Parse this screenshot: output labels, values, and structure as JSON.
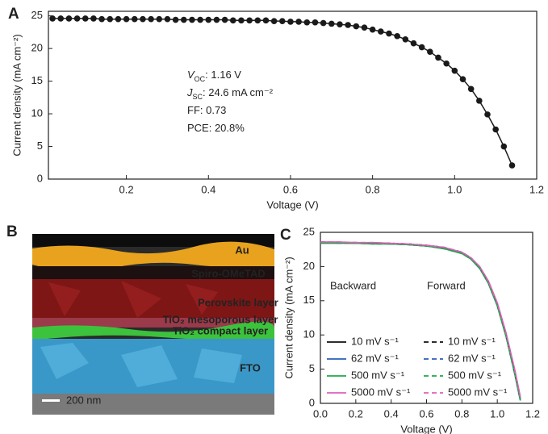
{
  "chart_data": [
    {
      "type": "line",
      "panel_label": "A",
      "xlabel": "Voltage (V)",
      "ylabel": "Current density (mA cm⁻²)",
      "xlim": [
        0.01,
        1.2
      ],
      "xticks": [
        0.2,
        0.4,
        0.6,
        0.8,
        {
          "value": 1,
          "label": "1.0"
        },
        1.2
      ],
      "ylim": [
        0,
        25.7
      ],
      "yticks": [
        0,
        5,
        10,
        15,
        20,
        25
      ],
      "markers": true,
      "x": [
        0.02,
        0.04,
        0.06,
        0.08,
        0.1,
        0.12,
        0.14,
        0.16,
        0.18,
        0.2,
        0.22,
        0.24,
        0.26,
        0.28,
        0.3,
        0.32,
        0.34,
        0.36,
        0.38,
        0.4,
        0.42,
        0.44,
        0.46,
        0.48,
        0.5,
        0.52,
        0.54,
        0.56,
        0.58,
        0.6,
        0.62,
        0.64,
        0.66,
        0.68,
        0.7,
        0.72,
        0.74,
        0.76,
        0.78,
        0.8,
        0.82,
        0.84,
        0.86,
        0.88,
        0.9,
        0.92,
        0.94,
        0.96,
        0.98,
        1.0,
        1.02,
        1.04,
        1.06,
        1.08,
        1.1,
        1.12,
        1.14
      ],
      "series": [
        {
          "color": "#1a1a1a",
          "values": [
            24.6,
            24.6,
            24.6,
            24.6,
            24.6,
            24.6,
            24.5,
            24.5,
            24.5,
            24.5,
            24.5,
            24.5,
            24.5,
            24.5,
            24.5,
            24.4,
            24.4,
            24.4,
            24.4,
            24.4,
            24.4,
            24.4,
            24.3,
            24.3,
            24.3,
            24.3,
            24.3,
            24.2,
            24.2,
            24.1,
            24.1,
            24.0,
            24.0,
            23.9,
            23.8,
            23.7,
            23.6,
            23.4,
            23.2,
            22.9,
            22.6,
            22.3,
            21.9,
            21.4,
            20.8,
            20.2,
            19.5,
            18.6,
            17.7,
            16.6,
            15.3,
            13.8,
            12.0,
            9.9,
            7.6,
            5.0,
            2.1
          ]
        }
      ],
      "annotations": [
        [
          {
            "text": "V",
            "style": "italic"
          },
          {
            "text": "OC",
            "style": "sub"
          },
          {
            "text": ": 1.16 V"
          }
        ],
        [
          {
            "text": "J",
            "style": "italic"
          },
          {
            "text": "SC",
            "style": "sub"
          },
          {
            "text": ": 24.6 mA cm⁻²"
          }
        ],
        [
          {
            "text": "FF: 0.73"
          }
        ],
        [
          {
            "text": "PCE: 20.8%"
          }
        ]
      ]
    },
    {
      "type": "line",
      "panel_label": "C",
      "xlabel": "Voltage (V)",
      "ylabel": "Current density (mA cm⁻²)",
      "xlim": [
        0,
        1.2
      ],
      "xticks": [
        {
          "value": 0,
          "label": "0.0"
        },
        0.2,
        0.4,
        0.6,
        0.8,
        {
          "value": 1,
          "label": "1.0"
        },
        1.2
      ],
      "ylim": [
        0,
        25
      ],
      "yticks": [
        0,
        5,
        10,
        15,
        20,
        25
      ],
      "markers": false,
      "legend_titles": [
        "Backward",
        "Forward"
      ],
      "x": [
        0,
        0.1,
        0.2,
        0.3,
        0.4,
        0.5,
        0.6,
        0.7,
        0.8,
        0.85,
        0.9,
        0.95,
        1.0,
        1.05,
        1.1,
        1.13
      ],
      "series": [
        {
          "name": "10 mV s⁻¹",
          "color": "#111111",
          "dash": false,
          "values": [
            23.5,
            23.5,
            23.4,
            23.4,
            23.3,
            23.2,
            23.0,
            22.7,
            22.0,
            21.2,
            19.8,
            17.6,
            14.3,
            9.8,
            4.2,
            0.5
          ]
        },
        {
          "name": "62 mV s⁻¹",
          "color": "#2b5fb8",
          "dash": false,
          "values": [
            23.5,
            23.5,
            23.4,
            23.4,
            23.3,
            23.2,
            23.0,
            22.7,
            22.0,
            21.2,
            19.9,
            17.7,
            14.5,
            10.0,
            4.5,
            0.7
          ]
        },
        {
          "name": "500 mV s⁻¹",
          "color": "#1fa84a",
          "dash": false,
          "values": [
            23.4,
            23.4,
            23.4,
            23.3,
            23.3,
            23.2,
            23.0,
            22.6,
            21.9,
            21.1,
            19.7,
            17.5,
            14.2,
            9.7,
            4.1,
            0.4
          ]
        },
        {
          "name": "5000 mV s⁻¹",
          "color": "#e060b8",
          "dash": false,
          "values": [
            23.6,
            23.6,
            23.5,
            23.5,
            23.4,
            23.3,
            23.1,
            22.8,
            22.1,
            21.3,
            20.0,
            17.9,
            14.7,
            10.3,
            4.8,
            1.0
          ]
        },
        {
          "name": "10 mV s⁻¹",
          "color": "#111111",
          "dash": true,
          "values": [
            23.6,
            23.5,
            23.5,
            23.4,
            23.4,
            23.3,
            23.1,
            22.8,
            22.1,
            21.3,
            19.9,
            17.7,
            14.4,
            9.9,
            4.3,
            0.6
          ]
        },
        {
          "name": "62 mV s⁻¹",
          "color": "#2b5fb8",
          "dash": true,
          "values": [
            23.5,
            23.5,
            23.4,
            23.4,
            23.3,
            23.2,
            23.0,
            22.7,
            22.0,
            21.2,
            19.8,
            17.6,
            14.4,
            9.9,
            4.4,
            0.6
          ]
        },
        {
          "name": "500 mV s⁻¹",
          "color": "#1fa84a",
          "dash": true,
          "values": [
            23.5,
            23.4,
            23.4,
            23.3,
            23.3,
            23.2,
            23.0,
            22.6,
            21.9,
            21.1,
            19.8,
            17.6,
            14.3,
            9.8,
            4.2,
            0.5
          ]
        },
        {
          "name": "5000 mV s⁻¹",
          "color": "#e060b8",
          "dash": true,
          "values": [
            23.6,
            23.6,
            23.5,
            23.5,
            23.4,
            23.3,
            23.1,
            22.8,
            22.1,
            21.3,
            20.0,
            17.8,
            14.6,
            10.2,
            4.7,
            0.9
          ]
        }
      ]
    }
  ],
  "image_panel": {
    "panel_label": "B",
    "labels": [
      "Au",
      "Spiro-OMeTAD",
      "Perovskite layer",
      "TiO₂ mesoporous layer",
      "TiO₂ compact layer",
      "FTO"
    ],
    "scale_bar": "200 nm"
  }
}
